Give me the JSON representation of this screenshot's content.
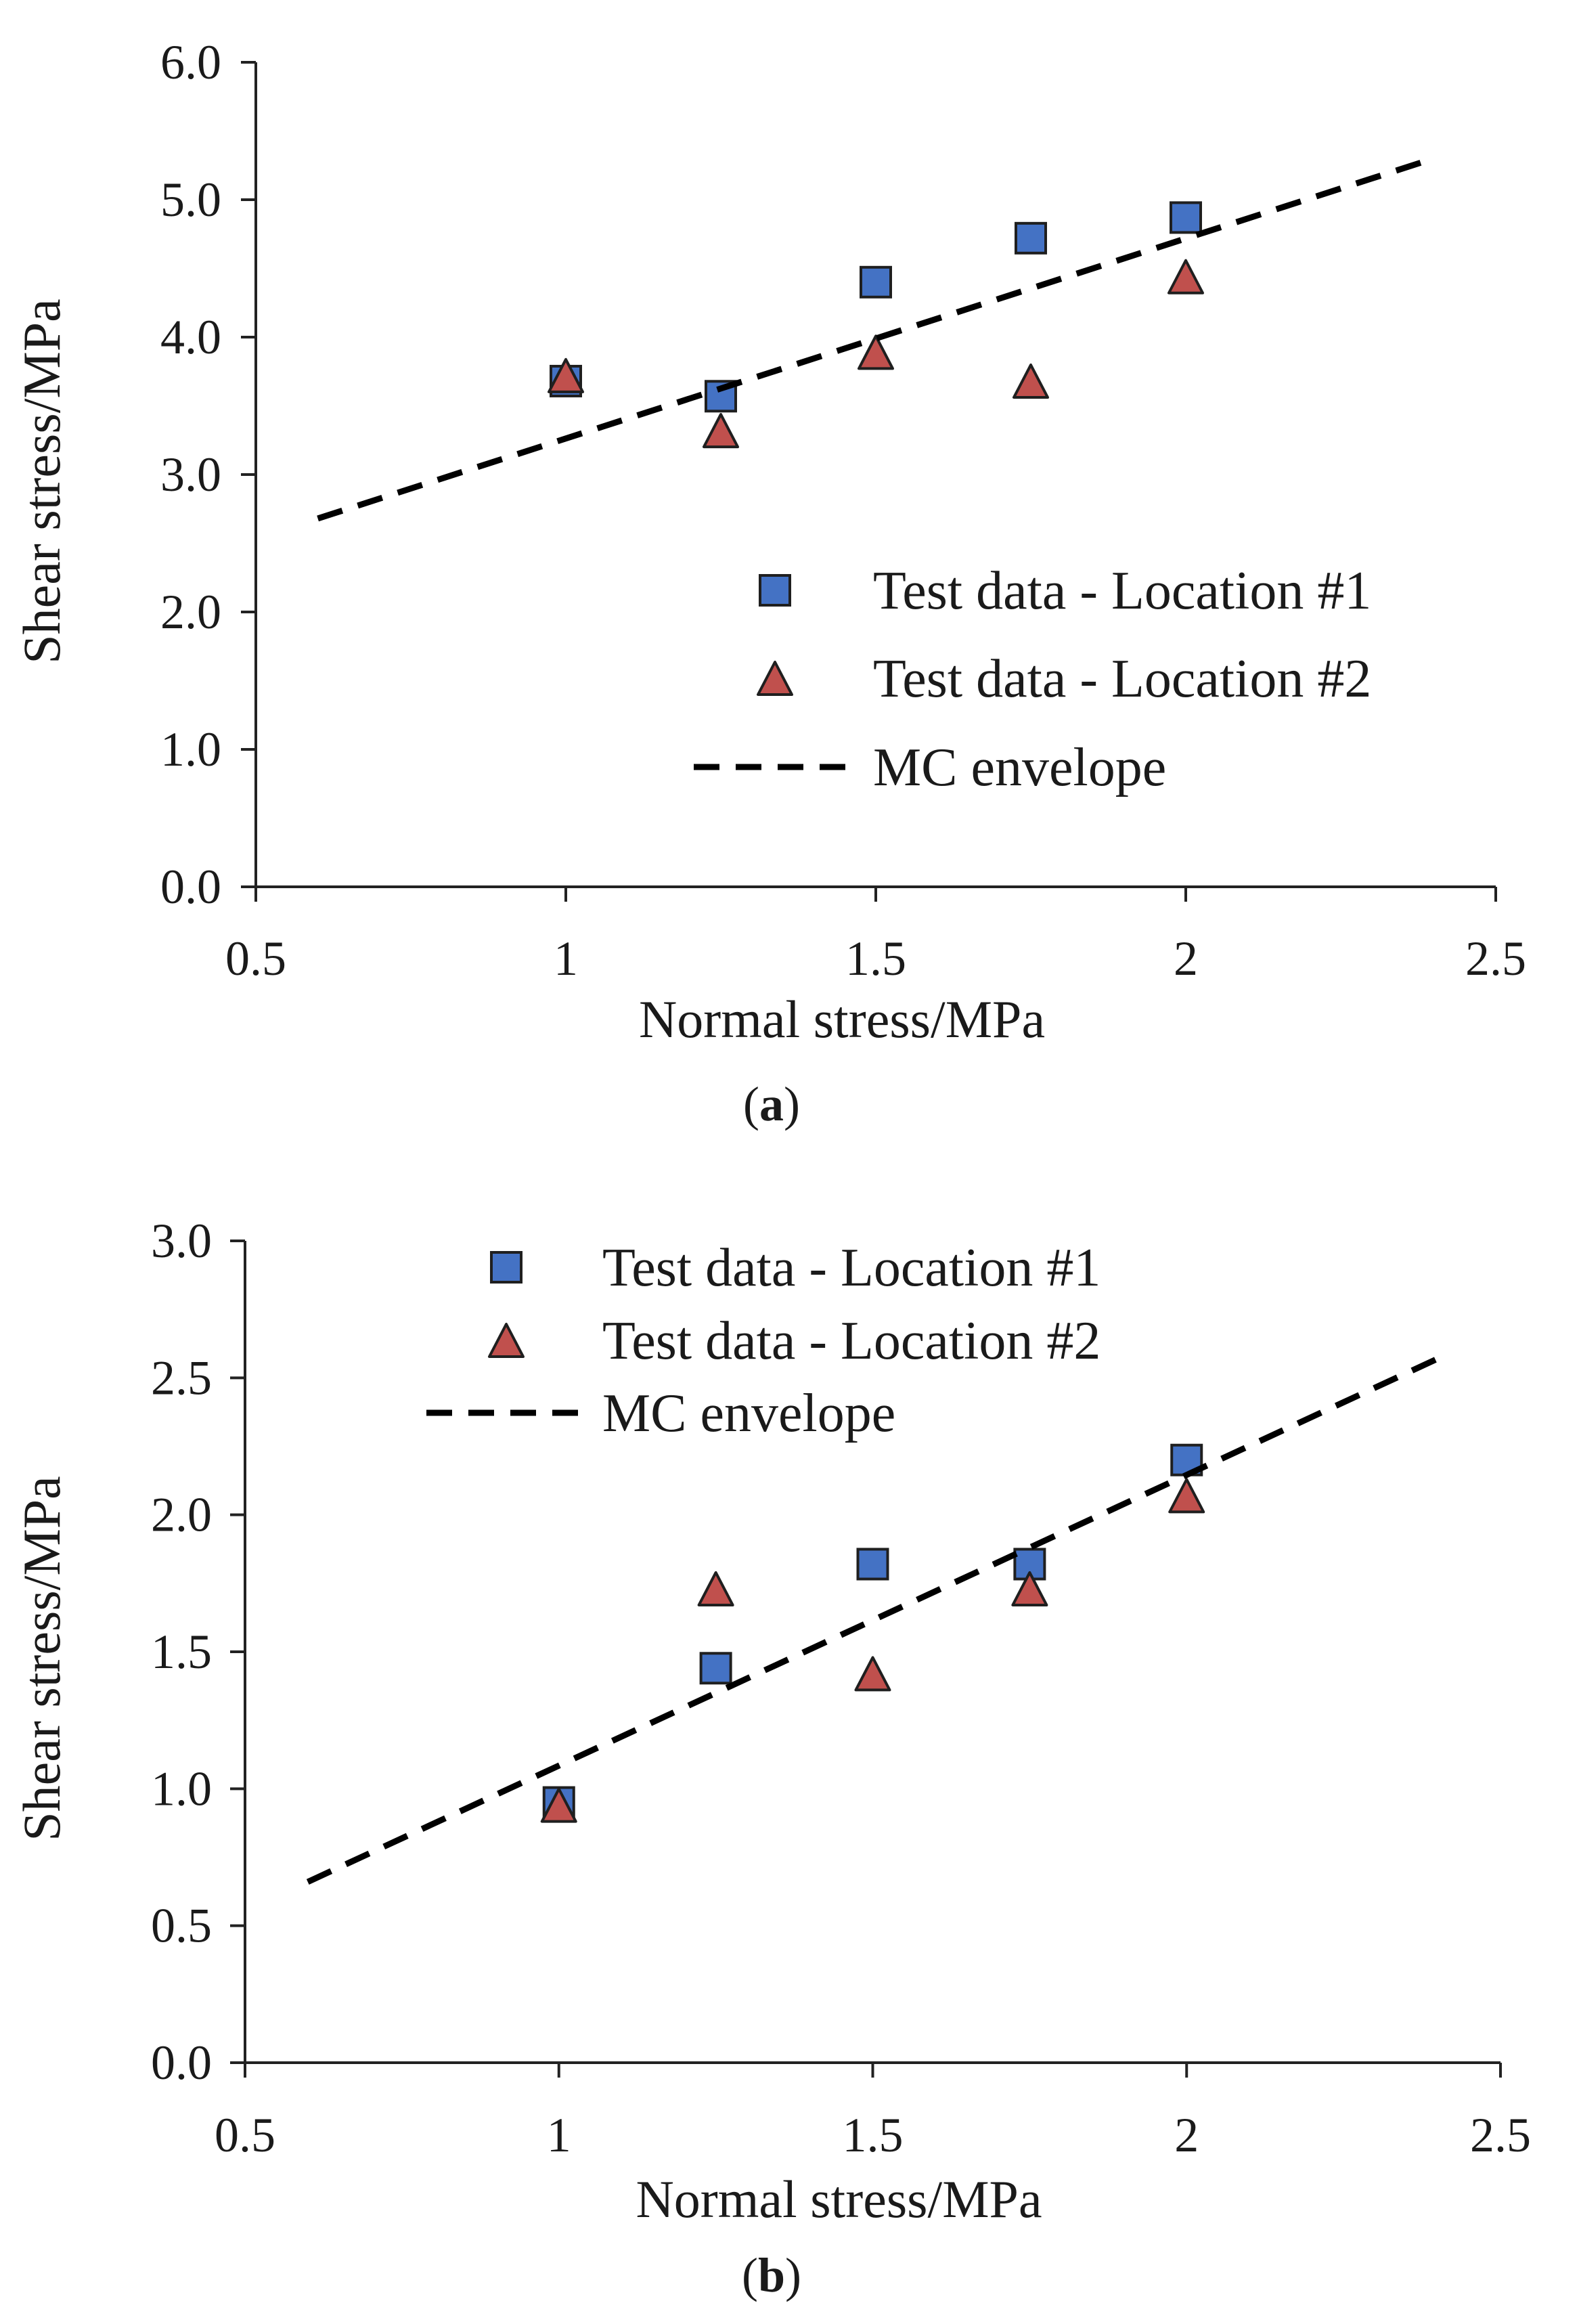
{
  "chart_data": [
    {
      "id": "a",
      "type": "scatter",
      "panel_label": "a",
      "xlabel": "Normal stress/MPa",
      "ylabel": "Shear stress/MPa",
      "xlim": [
        0.5,
        2.5
      ],
      "ylim": [
        0.0,
        6.0
      ],
      "xticks": [
        0.5,
        1,
        1.5,
        2,
        2.5
      ],
      "xtick_labels": [
        "0.5",
        "1",
        "1.5",
        "2",
        "2.5"
      ],
      "yticks": [
        0,
        1,
        2,
        3,
        4,
        5,
        6
      ],
      "ytick_labels": [
        "0.0",
        "1.0",
        "2.0",
        "3.0",
        "4.0",
        "5.0",
        "6.0"
      ],
      "legend_position": "lower-right",
      "series": [
        {
          "name": "Test data - Location #1",
          "marker": "square",
          "color": "#4472C4",
          "x": [
            1.0,
            1.25,
            1.5,
            1.75,
            2.0
          ],
          "y": [
            3.68,
            3.57,
            4.4,
            4.72,
            4.87
          ]
        },
        {
          "name": "Test data - Location #2",
          "marker": "triangle",
          "color": "#C0504D",
          "x": [
            1.0,
            1.25,
            1.5,
            1.75,
            2.0
          ],
          "y": [
            3.7,
            3.3,
            3.87,
            3.66,
            4.42
          ]
        },
        {
          "name": "MC envelope",
          "marker": "dashed-line",
          "color": "#000000",
          "x": [
            0.6,
            2.4
          ],
          "y": [
            2.68,
            5.3
          ]
        }
      ]
    },
    {
      "id": "b",
      "type": "scatter",
      "panel_label": "b",
      "xlabel": "Normal stress/MPa",
      "ylabel": "Shear stress/MPa",
      "xlim": [
        0.5,
        2.5
      ],
      "ylim": [
        0.0,
        3.0
      ],
      "xticks": [
        0.5,
        1,
        1.5,
        2,
        2.5
      ],
      "xtick_labels": [
        "0.5",
        "1",
        "1.5",
        "2",
        "2.5"
      ],
      "yticks": [
        0,
        0.5,
        1,
        1.5,
        2,
        2.5,
        3
      ],
      "ytick_labels": [
        "0.0",
        "0.5",
        "1.0",
        "1.5",
        "2.0",
        "2.5",
        "3.0"
      ],
      "legend_position": "top-left",
      "series": [
        {
          "name": "Test data - Location #1",
          "marker": "square",
          "color": "#4472C4",
          "x": [
            1.0,
            1.25,
            1.5,
            1.75,
            2.0
          ],
          "y": [
            0.95,
            1.44,
            1.82,
            1.82,
            2.2
          ]
        },
        {
          "name": "Test data - Location #2",
          "marker": "triangle",
          "color": "#C0504D",
          "x": [
            1.0,
            1.25,
            1.5,
            1.75,
            2.0
          ],
          "y": [
            0.93,
            1.72,
            1.41,
            1.72,
            2.06
          ]
        },
        {
          "name": "MC envelope",
          "marker": "dashed-line",
          "color": "#000000",
          "x": [
            0.6,
            2.4
          ],
          "y": [
            0.66,
            2.57
          ]
        }
      ]
    }
  ]
}
